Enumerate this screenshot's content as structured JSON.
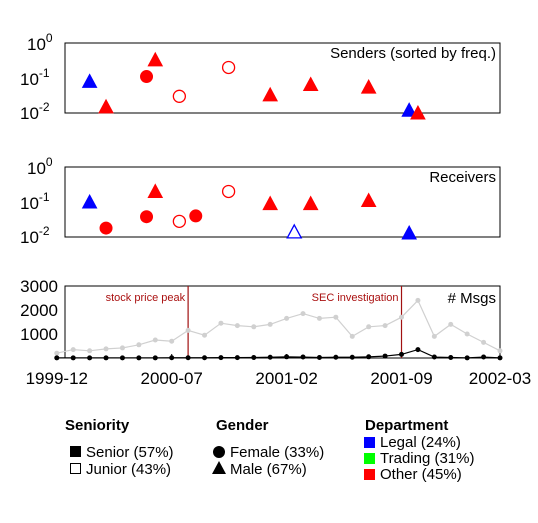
{
  "chart_data": [
    {
      "type": "scatter",
      "title": "Senders (sorted by freq.)",
      "yscale": "log",
      "ylim": [
        0.01,
        1
      ],
      "y_ticks": [
        {
          "base": "10",
          "exp": "0"
        },
        {
          "base": "10",
          "exp": "-1"
        },
        {
          "base": "10",
          "exp": "-2"
        }
      ],
      "points": [
        {
          "x": "2000-02-01",
          "y": 0.08,
          "gender": "male",
          "seniority": "senior",
          "department": "legal"
        },
        {
          "x": "2000-03-01",
          "y": 0.015,
          "gender": "male",
          "seniority": "senior",
          "department": "other"
        },
        {
          "x": "2000-05-15",
          "y": 0.11,
          "gender": "female",
          "seniority": "senior",
          "department": "other"
        },
        {
          "x": "2000-06-01",
          "y": 0.33,
          "gender": "male",
          "seniority": "senior",
          "department": "other"
        },
        {
          "x": "2000-07-15",
          "y": 0.03,
          "gender": "female",
          "seniority": "junior",
          "department": "other"
        },
        {
          "x": "2000-10-15",
          "y": 0.2,
          "gender": "female",
          "seniority": "junior",
          "department": "other"
        },
        {
          "x": "2001-01-01",
          "y": 0.033,
          "gender": "male",
          "seniority": "senior",
          "department": "other"
        },
        {
          "x": "2001-03-15",
          "y": 0.065,
          "gender": "male",
          "seniority": "senior",
          "department": "other"
        },
        {
          "x": "2001-07-01",
          "y": 0.055,
          "gender": "male",
          "seniority": "senior",
          "department": "other"
        },
        {
          "x": "2001-09-15",
          "y": 0.012,
          "gender": "male",
          "seniority": "senior",
          "department": "legal"
        },
        {
          "x": "2001-10-01",
          "y": 0.01,
          "gender": "male",
          "seniority": "senior",
          "department": "other"
        }
      ]
    },
    {
      "type": "scatter",
      "title": "Receivers",
      "yscale": "log",
      "ylim": [
        0.01,
        1
      ],
      "y_ticks": [
        {
          "base": "10",
          "exp": "0"
        },
        {
          "base": "10",
          "exp": "-1"
        },
        {
          "base": "10",
          "exp": "-2"
        }
      ],
      "points": [
        {
          "x": "2000-02-01",
          "y": 0.1,
          "gender": "male",
          "seniority": "senior",
          "department": "legal"
        },
        {
          "x": "2000-03-01",
          "y": 0.018,
          "gender": "female",
          "seniority": "senior",
          "department": "other"
        },
        {
          "x": "2000-05-15",
          "y": 0.038,
          "gender": "female",
          "seniority": "senior",
          "department": "other"
        },
        {
          "x": "2000-06-01",
          "y": 0.2,
          "gender": "male",
          "seniority": "senior",
          "department": "other"
        },
        {
          "x": "2000-07-15",
          "y": 0.028,
          "gender": "female",
          "seniority": "junior",
          "department": "other"
        },
        {
          "x": "2000-08-15",
          "y": 0.04,
          "gender": "female",
          "seniority": "senior",
          "department": "other"
        },
        {
          "x": "2000-10-15",
          "y": 0.2,
          "gender": "female",
          "seniority": "junior",
          "department": "other"
        },
        {
          "x": "2001-01-01",
          "y": 0.09,
          "gender": "male",
          "seniority": "senior",
          "department": "other"
        },
        {
          "x": "2001-02-15",
          "y": 0.014,
          "gender": "male",
          "seniority": "junior",
          "department": "legal"
        },
        {
          "x": "2001-03-15",
          "y": 0.09,
          "gender": "male",
          "seniority": "senior",
          "department": "other"
        },
        {
          "x": "2001-07-01",
          "y": 0.11,
          "gender": "male",
          "seniority": "senior",
          "department": "other"
        },
        {
          "x": "2001-09-15",
          "y": 0.013,
          "gender": "male",
          "seniority": "senior",
          "department": "legal"
        }
      ]
    },
    {
      "type": "line",
      "title": "# Msgs",
      "ylim": [
        0,
        3000
      ],
      "y_ticks": [
        1000,
        2000,
        3000
      ],
      "x_ticks": [
        "1999-12",
        "2000-07",
        "2001-02",
        "2001-09",
        "2002-03"
      ],
      "xlim": [
        "1999-12",
        "2002-03"
      ],
      "annotations": [
        {
          "x": "2000-08",
          "text": "stock price peak"
        },
        {
          "x": "2001-09",
          "text": "SEC investigation"
        }
      ],
      "series": [
        {
          "style": "gray",
          "x": [
            "1999-12",
            "2000-01",
            "2000-02",
            "2000-03",
            "2000-04",
            "2000-05",
            "2000-06",
            "2000-07",
            "2000-08",
            "2000-09",
            "2000-10",
            "2000-11",
            "2000-12",
            "2001-01",
            "2001-02",
            "2001-03",
            "2001-04",
            "2001-05",
            "2001-06",
            "2001-07",
            "2001-08",
            "2001-09",
            "2001-10",
            "2001-11",
            "2001-12",
            "2002-01",
            "2002-02",
            "2002-03"
          ],
          "values": [
            200,
            350,
            300,
            380,
            420,
            550,
            750,
            700,
            1150,
            950,
            1450,
            1350,
            1300,
            1400,
            1650,
            1850,
            1650,
            1700,
            900,
            1300,
            1350,
            1700,
            2400,
            900,
            1400,
            1000,
            650,
            300
          ]
        },
        {
          "style": "black",
          "x": [
            "1999-12",
            "2000-01",
            "2000-02",
            "2000-03",
            "2000-04",
            "2000-05",
            "2000-06",
            "2000-07",
            "2000-08",
            "2000-09",
            "2000-10",
            "2000-11",
            "2000-12",
            "2001-01",
            "2001-02",
            "2001-03",
            "2001-04",
            "2001-05",
            "2001-06",
            "2001-07",
            "2001-08",
            "2001-09",
            "2001-10",
            "2001-11",
            "2001-12",
            "2002-01",
            "2002-02",
            "2002-03"
          ],
          "values": [
            5,
            5,
            5,
            5,
            5,
            5,
            5,
            10,
            10,
            10,
            15,
            15,
            20,
            30,
            50,
            40,
            20,
            30,
            30,
            50,
            80,
            150,
            350,
            40,
            20,
            5,
            40,
            5
          ]
        }
      ]
    }
  ],
  "legend": {
    "seniority": {
      "title": "Seniority",
      "items": [
        {
          "label": "Senior (57%)",
          "marker": "filled-square"
        },
        {
          "label": "Junior (43%)",
          "marker": "open-square"
        }
      ]
    },
    "gender": {
      "title": "Gender",
      "items": [
        {
          "label": "Female (33%)",
          "marker": "circle"
        },
        {
          "label": "Male (67%)",
          "marker": "triangle"
        }
      ]
    },
    "department": {
      "title": "Department",
      "items": [
        {
          "label": "Legal (24%)",
          "color": "#0000ff"
        },
        {
          "label": "Trading (31%)",
          "color": "#00ff00"
        },
        {
          "label": "Other (45%)",
          "color": "#ff0000"
        }
      ]
    }
  },
  "colors": {
    "legal": "#0000ff",
    "trading": "#00ff00",
    "other": "#ff0000",
    "annotation_line": "#a11111",
    "gray_series": "#d0d0d0",
    "black_series": "#000000"
  }
}
